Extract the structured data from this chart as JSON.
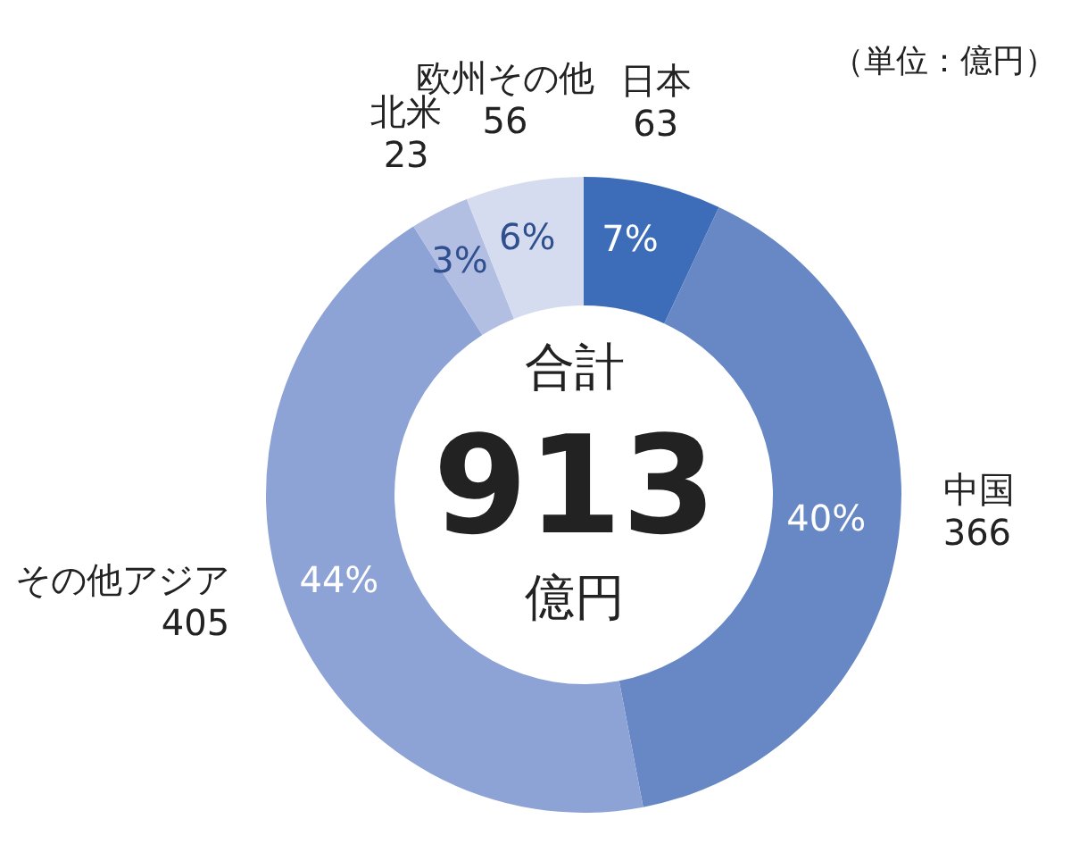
{
  "chart_data": {
    "type": "donut",
    "categories": [
      "日本\n63",
      "中国\n366",
      "その他アジア\n405",
      "北米\n23",
      "欧州その他\n56"
    ],
    "values": [
      7,
      40,
      44,
      3,
      6
    ],
    "colors": [
      "#3d6db8",
      "#6787c5",
      "#8ea3d5",
      "#b3bfe2",
      "#d6dcef"
    ],
    "value_labels": [
      "7%",
      "40%",
      "44%",
      "3%",
      "6%"
    ],
    "annotations": [
      "（単位：億円）",
      "合計",
      "913",
      "億円"
    ]
  }
}
